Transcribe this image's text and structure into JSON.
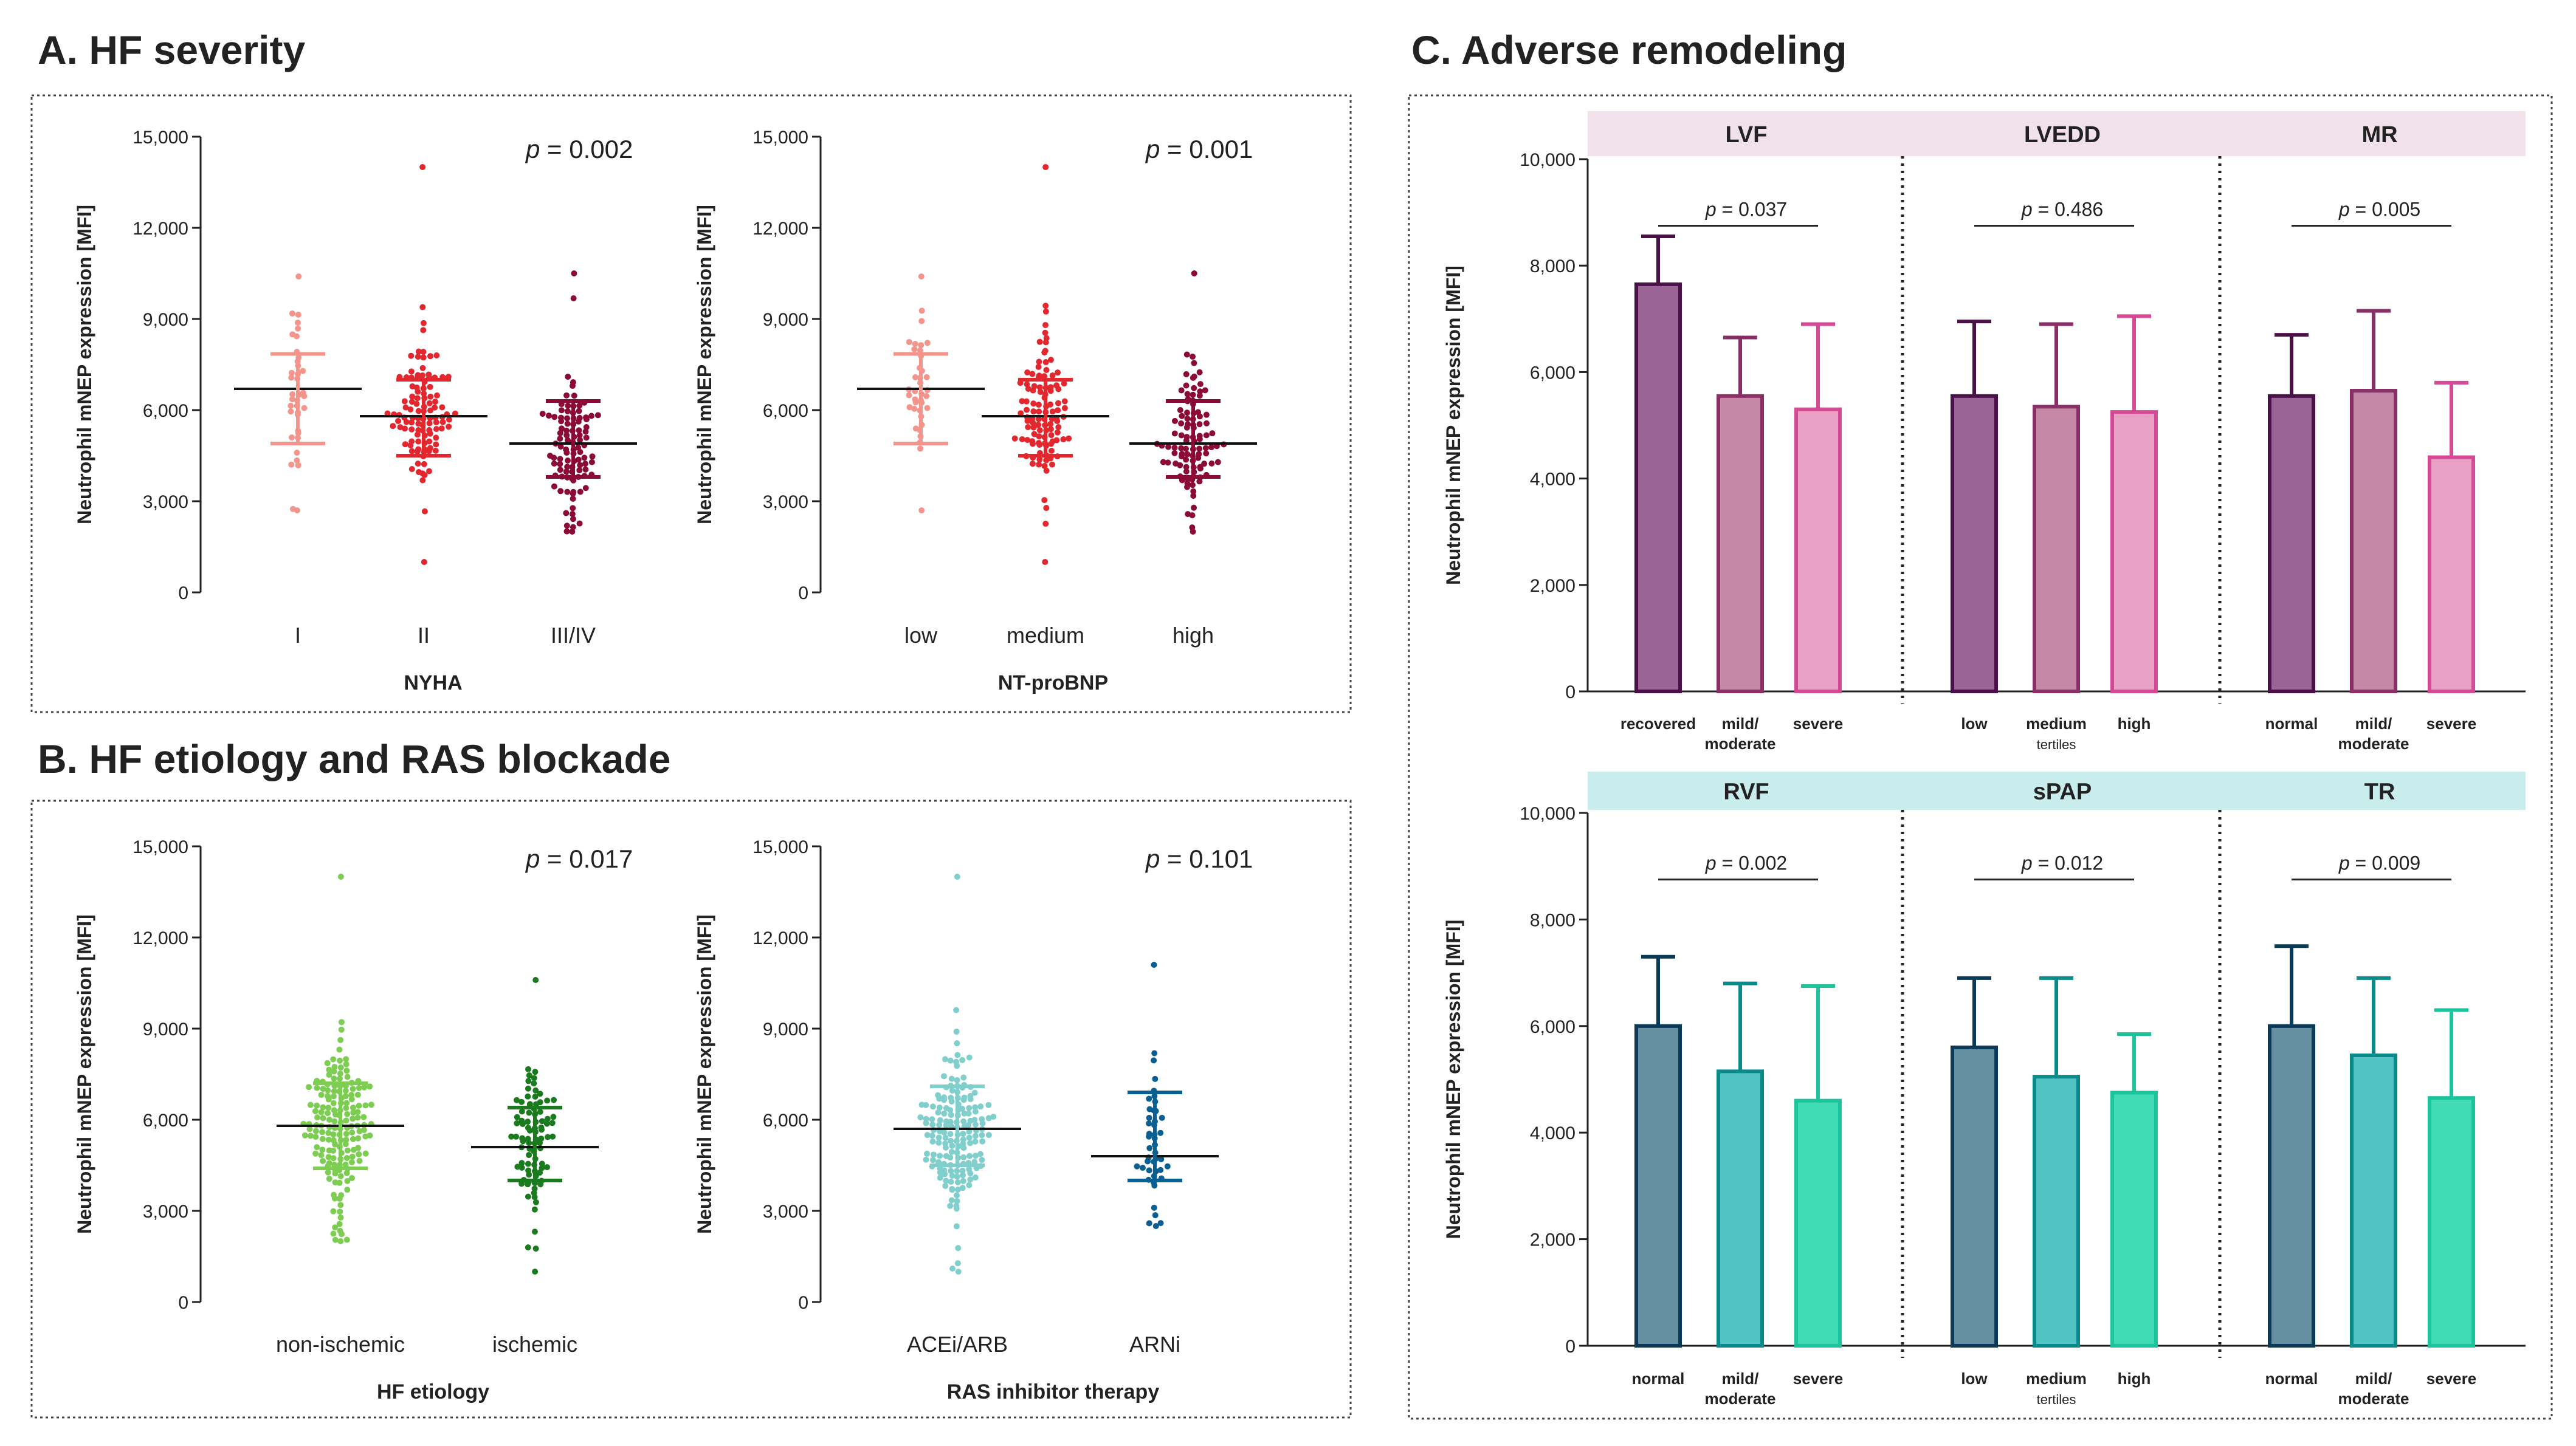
{
  "titles": {
    "a": "A. HF severity",
    "b": "B. HF etiology and RAS blockade",
    "c": "C. Adverse remodeling"
  },
  "y_axis_label": "Neutrophil mNEP expression [MFI]",
  "chart_data": [
    {
      "id": "a1",
      "type": "scatter",
      "panel": "A",
      "xlabel": "NYHA",
      "ylabel": "Neutrophil mNEP expression [MFI]",
      "ylim": [
        0,
        15000
      ],
      "yticks": [
        0,
        3000,
        6000,
        9000,
        12000,
        15000
      ],
      "ytick_labels": [
        "0",
        "3,000",
        "6,000",
        "9,000",
        "12,000",
        "15,000"
      ],
      "p_prefix": "p",
      "p_value": " = 0.002",
      "categories": [
        "I",
        "II",
        "III/IV"
      ],
      "series": [
        {
          "name": "I",
          "mean": 6700,
          "sd_low": 4900,
          "sd_high": 7850,
          "n": 38,
          "min": 2700,
          "max": 10400,
          "color": "#f4958d"
        },
        {
          "name": "II",
          "mean": 5800,
          "sd_low": 4500,
          "sd_high": 7000,
          "n": 110,
          "min": 1000,
          "max": 14000,
          "color": "#e2272f"
        },
        {
          "name": "III/IV",
          "mean": 4900,
          "sd_low": 3800,
          "sd_high": 6300,
          "n": 100,
          "min": 2000,
          "max": 10500,
          "color": "#8b0b36"
        }
      ]
    },
    {
      "id": "a2",
      "type": "scatter",
      "panel": "A",
      "xlabel": "NT-proBNP",
      "ylabel": "Neutrophil mNEP expression [MFI]",
      "ylim": [
        0,
        15000
      ],
      "yticks": [
        0,
        3000,
        6000,
        9000,
        12000,
        15000
      ],
      "ytick_labels": [
        "0",
        "3,000",
        "6,000",
        "9,000",
        "12,000",
        "15,000"
      ],
      "p_prefix": "p",
      "p_value": " = 0.001",
      "categories": [
        "low",
        "medium",
        "high"
      ],
      "series": [
        {
          "name": "low",
          "mean": 6700,
          "sd_low": 4900,
          "sd_high": 7850,
          "n": 38,
          "min": 2700,
          "max": 10400,
          "color": "#f4958d"
        },
        {
          "name": "medium",
          "mean": 5800,
          "sd_low": 4500,
          "sd_high": 7000,
          "n": 110,
          "min": 1000,
          "max": 14000,
          "color": "#e2272f"
        },
        {
          "name": "high",
          "mean": 4900,
          "sd_low": 3800,
          "sd_high": 6300,
          "n": 100,
          "min": 2000,
          "max": 10500,
          "color": "#8b0b36"
        }
      ]
    },
    {
      "id": "b1",
      "type": "scatter",
      "panel": "B",
      "xlabel": "HF etiology",
      "ylabel": "Neutrophil mNEP expression [MFI]",
      "ylim": [
        0,
        15000
      ],
      "yticks": [
        0,
        3000,
        6000,
        9000,
        12000,
        15000
      ],
      "ytick_labels": [
        "0",
        "3,000",
        "6,000",
        "9,000",
        "12,000",
        "15,000"
      ],
      "p_prefix": "p",
      "p_value": " = 0.017",
      "categories": [
        "non-ischemic",
        "ischemic"
      ],
      "series": [
        {
          "name": "non-ischemic",
          "mean": 5800,
          "sd_low": 4400,
          "sd_high": 7200,
          "n": 170,
          "min": 2000,
          "max": 14000,
          "color": "#7ccd52"
        },
        {
          "name": "ischemic",
          "mean": 5100,
          "sd_low": 4000,
          "sd_high": 6400,
          "n": 90,
          "min": 1000,
          "max": 10600,
          "color": "#1a7a1e"
        }
      ]
    },
    {
      "id": "b2",
      "type": "scatter",
      "panel": "B",
      "xlabel": "RAS inhibitor therapy",
      "ylabel": "Neutrophil mNEP expression [MFI]",
      "ylim": [
        0,
        15000
      ],
      "yticks": [
        0,
        3000,
        6000,
        9000,
        12000,
        15000
      ],
      "ytick_labels": [
        "0",
        "3,000",
        "6,000",
        "9,000",
        "12,000",
        "15,000"
      ],
      "p_prefix": "p",
      "p_value": " = 0.101",
      "categories": [
        "ACEi/ARB",
        "ARNi"
      ],
      "series": [
        {
          "name": "ACEi/ARB",
          "mean": 5700,
          "sd_low": 4500,
          "sd_high": 7100,
          "n": 170,
          "min": 1000,
          "max": 14000,
          "color": "#80cfcd"
        },
        {
          "name": "ARNi",
          "mean": 4800,
          "sd_low": 4000,
          "sd_high": 6900,
          "n": 45,
          "min": 2500,
          "max": 11100,
          "color": "#0a5f92"
        }
      ]
    },
    {
      "id": "c1",
      "type": "bar",
      "panel": "C",
      "ylabel": "Neutrophil mNEP expression [MFI]",
      "ylim": [
        0,
        10000
      ],
      "yticks": [
        0,
        2000,
        4000,
        6000,
        8000,
        10000
      ],
      "ytick_labels": [
        "0",
        "2,000",
        "4,000",
        "6,000",
        "8,000",
        "10,000"
      ],
      "band_color": "#f1e1ea",
      "groups": [
        {
          "name": "LVF",
          "p_prefix": "p",
          "p_value": " = 0.037",
          "categories": [
            {
              "label": "recovered",
              "sub": ""
            },
            {
              "label": "mild/",
              "sub": "moderate"
            },
            {
              "label": "severe",
              "sub": ""
            }
          ],
          "values": [
            7650,
            5550,
            5300
          ],
          "errors_upper": [
            8550,
            6650,
            6900
          ],
          "fills": [
            "#9b6496",
            "#c589a7",
            "#e9a0c5"
          ],
          "strokes": [
            "#4a1048",
            "#8a2e68",
            "#d54a95"
          ]
        },
        {
          "name": "LVEDD",
          "p_prefix": "p",
          "p_value": " = 0.486",
          "categories": [
            {
              "label": "low",
              "sub": ""
            },
            {
              "label": "medium",
              "sub": "tertiles"
            },
            {
              "label": "high",
              "sub": ""
            }
          ],
          "values": [
            5550,
            5350,
            5250
          ],
          "errors_upper": [
            6950,
            6900,
            7050
          ],
          "fills": [
            "#9b6496",
            "#c589a7",
            "#e9a0c5"
          ],
          "strokes": [
            "#4a1048",
            "#8a2e68",
            "#d54a95"
          ]
        },
        {
          "name": "MR",
          "p_prefix": "p",
          "p_value": " = 0.005",
          "categories": [
            {
              "label": "normal",
              "sub": ""
            },
            {
              "label": "mild/",
              "sub": "moderate"
            },
            {
              "label": "severe",
              "sub": ""
            }
          ],
          "values": [
            5550,
            5650,
            4400
          ],
          "errors_upper": [
            6700,
            7150,
            5800
          ],
          "fills": [
            "#9b6496",
            "#c589a7",
            "#e9a0c5"
          ],
          "strokes": [
            "#4a1048",
            "#8a2e68",
            "#d54a95"
          ]
        }
      ]
    },
    {
      "id": "c2",
      "type": "bar",
      "panel": "C",
      "ylabel": "Neutrophil mNEP expression [MFI]",
      "ylim": [
        0,
        10000
      ],
      "yticks": [
        0,
        2000,
        4000,
        6000,
        8000,
        10000
      ],
      "ytick_labels": [
        "0",
        "2,000",
        "4,000",
        "6,000",
        "8,000",
        "10,000"
      ],
      "band_color": "#c9ecec",
      "groups": [
        {
          "name": "RVF",
          "p_prefix": "p",
          "p_value": " = 0.002",
          "categories": [
            {
              "label": "normal",
              "sub": ""
            },
            {
              "label": "mild/",
              "sub": "moderate"
            },
            {
              "label": "severe",
              "sub": ""
            }
          ],
          "values": [
            6000,
            5150,
            4600
          ],
          "errors_upper": [
            7300,
            6800,
            6750
          ],
          "fills": [
            "#668fa1",
            "#52c3c3",
            "#41dbb6"
          ],
          "strokes": [
            "#0b3a58",
            "#0b8a8a",
            "#1cc49c"
          ]
        },
        {
          "name": "sPAP",
          "p_prefix": "p",
          "p_value": " = 0.012",
          "categories": [
            {
              "label": "low",
              "sub": ""
            },
            {
              "label": "medium",
              "sub": "tertiles"
            },
            {
              "label": "high",
              "sub": ""
            }
          ],
          "values": [
            5600,
            5050,
            4750
          ],
          "errors_upper": [
            6900,
            6900,
            5850
          ],
          "fills": [
            "#668fa1",
            "#52c3c3",
            "#41dbb6"
          ],
          "strokes": [
            "#0b3a58",
            "#0b8a8a",
            "#1cc49c"
          ]
        },
        {
          "name": "TR",
          "p_prefix": "p",
          "p_value": " = 0.009",
          "categories": [
            {
              "label": "normal",
              "sub": ""
            },
            {
              "label": "mild/",
              "sub": "moderate"
            },
            {
              "label": "severe",
              "sub": ""
            }
          ],
          "values": [
            6000,
            5450,
            4650
          ],
          "errors_upper": [
            7500,
            6900,
            6300
          ],
          "fills": [
            "#668fa1",
            "#52c3c3",
            "#41dbb6"
          ],
          "strokes": [
            "#0b3a58",
            "#0b8a8a",
            "#1cc49c"
          ]
        }
      ]
    }
  ]
}
